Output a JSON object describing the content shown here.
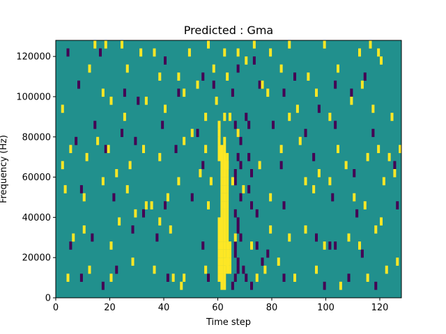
{
  "chart_data": {
    "type": "heatmap",
    "title": "Predicted : Gma",
    "xlabel": "Time step",
    "ylabel": "Frequency (Hz)",
    "xlim": [
      0,
      128
    ],
    "ylim": [
      0,
      128000
    ],
    "x_ticks": [
      0,
      20,
      40,
      60,
      80,
      100,
      120
    ],
    "y_ticks": [
      0,
      20000,
      40000,
      60000,
      80000,
      100000,
      120000
    ],
    "x_tick_labels": [
      "0",
      "20",
      "40",
      "60",
      "80",
      "100",
      "120"
    ],
    "y_tick_labels": [
      "0",
      "20000",
      "40000",
      "60000",
      "80000",
      "100000",
      "120000"
    ],
    "grid": false,
    "colormap": "viridis",
    "background_value": 0,
    "colors": {
      "background": "#21908d",
      "high": "#fde725",
      "low": "#440154"
    },
    "cell_height_hz": 4000,
    "high_cells": [
      [
        14,
        124000
      ],
      [
        18,
        124000
      ],
      [
        24,
        124000
      ],
      [
        31,
        120000
      ],
      [
        36,
        120000
      ],
      [
        49,
        120000
      ],
      [
        56,
        124000
      ],
      [
        62,
        120000
      ],
      [
        67,
        120000
      ],
      [
        73,
        124000
      ],
      [
        79,
        120000
      ],
      [
        86,
        124000
      ],
      [
        99,
        124000
      ],
      [
        112,
        120000
      ],
      [
        116,
        124000
      ],
      [
        119,
        120000
      ],
      [
        12,
        112000
      ],
      [
        26,
        112000
      ],
      [
        38,
        108000
      ],
      [
        45,
        108000
      ],
      [
        52,
        104000
      ],
      [
        58,
        112000
      ],
      [
        63,
        108000
      ],
      [
        70,
        116000
      ],
      [
        76,
        104000
      ],
      [
        83,
        112000
      ],
      [
        93,
        108000
      ],
      [
        104,
        112000
      ],
      [
        113,
        104000
      ],
      [
        120,
        116000
      ],
      [
        2,
        92000
      ],
      [
        17,
        100000
      ],
      [
        20,
        96000
      ],
      [
        25,
        88000
      ],
      [
        33,
        96000
      ],
      [
        40,
        92000
      ],
      [
        47,
        100000
      ],
      [
        55,
        88000
      ],
      [
        59,
        96000
      ],
      [
        62,
        88000
      ],
      [
        78,
        100000
      ],
      [
        86,
        88000
      ],
      [
        89,
        92000
      ],
      [
        96,
        100000
      ],
      [
        101,
        88000
      ],
      [
        109,
        96000
      ],
      [
        117,
        92000
      ],
      [
        124,
        88000
      ],
      [
        2,
        64000
      ],
      [
        5,
        72000
      ],
      [
        11,
        68000
      ],
      [
        15,
        76000
      ],
      [
        19,
        72000
      ],
      [
        27,
        64000
      ],
      [
        32,
        72000
      ],
      [
        38,
        68000
      ],
      [
        47,
        76000
      ],
      [
        50,
        80000
      ],
      [
        55,
        72000
      ],
      [
        60,
        84000
      ],
      [
        64,
        88000
      ],
      [
        67,
        80000
      ],
      [
        75,
        64000
      ],
      [
        83,
        72000
      ],
      [
        90,
        76000
      ],
      [
        97,
        60000
      ],
      [
        104,
        72000
      ],
      [
        107,
        64000
      ],
      [
        115,
        68000
      ],
      [
        119,
        72000
      ],
      [
        123,
        68000
      ],
      [
        127,
        72000
      ],
      [
        3,
        52000
      ],
      [
        10,
        48000
      ],
      [
        17,
        56000
      ],
      [
        22,
        60000
      ],
      [
        26,
        52000
      ],
      [
        35,
        44000
      ],
      [
        41,
        48000
      ],
      [
        45,
        56000
      ],
      [
        53,
        60000
      ],
      [
        57,
        56000
      ],
      [
        63,
        64000
      ],
      [
        65,
        56000
      ],
      [
        69,
        52000
      ],
      [
        79,
        48000
      ],
      [
        92,
        56000
      ],
      [
        95,
        52000
      ],
      [
        101,
        56000
      ],
      [
        110,
        48000
      ],
      [
        114,
        44000
      ],
      [
        121,
        56000
      ],
      [
        125,
        60000
      ],
      [
        6,
        28000
      ],
      [
        10,
        32000
      ],
      [
        20,
        24000
      ],
      [
        23,
        36000
      ],
      [
        29,
        40000
      ],
      [
        33,
        44000
      ],
      [
        38,
        36000
      ],
      [
        42,
        32000
      ],
      [
        56,
        44000
      ],
      [
        66,
        28000
      ],
      [
        72,
        24000
      ],
      [
        79,
        32000
      ],
      [
        86,
        28000
      ],
      [
        92,
        32000
      ],
      [
        99,
        24000
      ],
      [
        108,
        28000
      ],
      [
        112,
        24000
      ],
      [
        118,
        32000
      ],
      [
        120,
        36000
      ],
      [
        4,
        8000
      ],
      [
        12,
        12000
      ],
      [
        20,
        8000
      ],
      [
        28,
        16000
      ],
      [
        36,
        12000
      ],
      [
        43,
        8000
      ],
      [
        46,
        4000
      ],
      [
        47,
        8000
      ],
      [
        55,
        12000
      ],
      [
        63,
        16000
      ],
      [
        74,
        8000
      ],
      [
        77,
        12000
      ],
      [
        82,
        16000
      ],
      [
        88,
        8000
      ],
      [
        96,
        12000
      ],
      [
        105,
        4000
      ],
      [
        115,
        8000
      ],
      [
        122,
        12000
      ],
      [
        126,
        16000
      ],
      [
        61,
        4000
      ],
      [
        61,
        8000
      ],
      [
        61,
        12000
      ],
      [
        61,
        16000
      ],
      [
        61,
        20000
      ],
      [
        61,
        24000
      ],
      [
        61,
        28000
      ],
      [
        61,
        32000
      ],
      [
        61,
        36000
      ],
      [
        61,
        40000
      ],
      [
        61,
        44000
      ],
      [
        61,
        48000
      ],
      [
        61,
        52000
      ],
      [
        61,
        56000
      ],
      [
        61,
        60000
      ],
      [
        61,
        64000
      ],
      [
        61,
        68000
      ],
      [
        61,
        72000
      ],
      [
        62,
        4000
      ],
      [
        62,
        8000
      ],
      [
        62,
        12000
      ],
      [
        62,
        16000
      ],
      [
        62,
        20000
      ],
      [
        62,
        24000
      ],
      [
        62,
        28000
      ],
      [
        62,
        32000
      ],
      [
        62,
        36000
      ],
      [
        62,
        40000
      ],
      [
        62,
        44000
      ],
      [
        62,
        48000
      ],
      [
        62,
        52000
      ],
      [
        62,
        56000
      ],
      [
        62,
        60000
      ],
      [
        62,
        64000
      ],
      [
        62,
        68000
      ],
      [
        62,
        72000
      ],
      [
        62,
        76000
      ],
      [
        63,
        12000
      ],
      [
        63,
        16000
      ],
      [
        63,
        20000
      ],
      [
        63,
        24000
      ],
      [
        63,
        28000
      ],
      [
        63,
        32000
      ],
      [
        63,
        36000
      ],
      [
        63,
        40000
      ],
      [
        63,
        44000
      ],
      [
        63,
        48000
      ],
      [
        63,
        52000
      ],
      [
        63,
        56000
      ],
      [
        63,
        60000
      ],
      [
        63,
        64000
      ],
      [
        63,
        68000
      ],
      [
        60,
        8000
      ],
      [
        60,
        12000
      ],
      [
        60,
        16000
      ],
      [
        60,
        20000
      ],
      [
        60,
        24000
      ],
      [
        60,
        28000
      ],
      [
        60,
        32000
      ],
      [
        60,
        36000
      ],
      [
        60,
        68000
      ],
      [
        60,
        72000
      ],
      [
        60,
        76000
      ],
      [
        60,
        80000
      ],
      [
        64,
        12000
      ],
      [
        64,
        16000
      ],
      [
        64,
        20000
      ],
      [
        64,
        24000
      ]
    ],
    "low_cells": [
      [
        4,
        120000
      ],
      [
        16,
        120000
      ],
      [
        40,
        116000
      ],
      [
        54,
        108000
      ],
      [
        58,
        104000
      ],
      [
        67,
        112000
      ],
      [
        73,
        116000
      ],
      [
        88,
        108000
      ],
      [
        103,
        104000
      ],
      [
        114,
        108000
      ],
      [
        8,
        104000
      ],
      [
        25,
        100000
      ],
      [
        30,
        96000
      ],
      [
        45,
        100000
      ],
      [
        65,
        100000
      ],
      [
        75,
        104000
      ],
      [
        84,
        100000
      ],
      [
        97,
        92000
      ],
      [
        109,
        100000
      ],
      [
        14,
        84000
      ],
      [
        24,
        80000
      ],
      [
        39,
        84000
      ],
      [
        52,
        80000
      ],
      [
        66,
        84000
      ],
      [
        67,
        80000
      ],
      [
        68,
        76000
      ],
      [
        70,
        88000
      ],
      [
        71,
        84000
      ],
      [
        80,
        84000
      ],
      [
        92,
        80000
      ],
      [
        103,
        84000
      ],
      [
        117,
        80000
      ],
      [
        7,
        76000
      ],
      [
        18,
        72000
      ],
      [
        29,
        76000
      ],
      [
        44,
        72000
      ],
      [
        54,
        64000
      ],
      [
        66,
        60000
      ],
      [
        66,
        56000
      ],
      [
        67,
        68000
      ],
      [
        68,
        64000
      ],
      [
        71,
        68000
      ],
      [
        72,
        60000
      ],
      [
        83,
        64000
      ],
      [
        95,
        68000
      ],
      [
        110,
        60000
      ],
      [
        125,
        64000
      ],
      [
        9,
        52000
      ],
      [
        21,
        48000
      ],
      [
        32,
        40000
      ],
      [
        40,
        44000
      ],
      [
        50,
        48000
      ],
      [
        66,
        40000
      ],
      [
        67,
        36000
      ],
      [
        67,
        32000
      ],
      [
        68,
        48000
      ],
      [
        71,
        52000
      ],
      [
        72,
        44000
      ],
      [
        74,
        40000
      ],
      [
        84,
        44000
      ],
      [
        102,
        48000
      ],
      [
        111,
        40000
      ],
      [
        126,
        44000
      ],
      [
        5,
        24000
      ],
      [
        13,
        28000
      ],
      [
        28,
        32000
      ],
      [
        37,
        28000
      ],
      [
        54,
        24000
      ],
      [
        66,
        24000
      ],
      [
        66,
        20000
      ],
      [
        67,
        16000
      ],
      [
        67,
        12000
      ],
      [
        68,
        28000
      ],
      [
        70,
        8000
      ],
      [
        74,
        24000
      ],
      [
        76,
        16000
      ],
      [
        78,
        20000
      ],
      [
        96,
        28000
      ],
      [
        101,
        24000
      ],
      [
        103,
        24000
      ],
      [
        113,
        20000
      ],
      [
        9,
        8000
      ],
      [
        17,
        4000
      ],
      [
        22,
        12000
      ],
      [
        41,
        8000
      ],
      [
        56,
        8000
      ],
      [
        65,
        4000
      ],
      [
        66,
        8000
      ],
      [
        69,
        12000
      ],
      [
        72,
        4000
      ],
      [
        84,
        8000
      ],
      [
        99,
        4000
      ],
      [
        108,
        8000
      ],
      [
        118,
        4000
      ]
    ]
  }
}
